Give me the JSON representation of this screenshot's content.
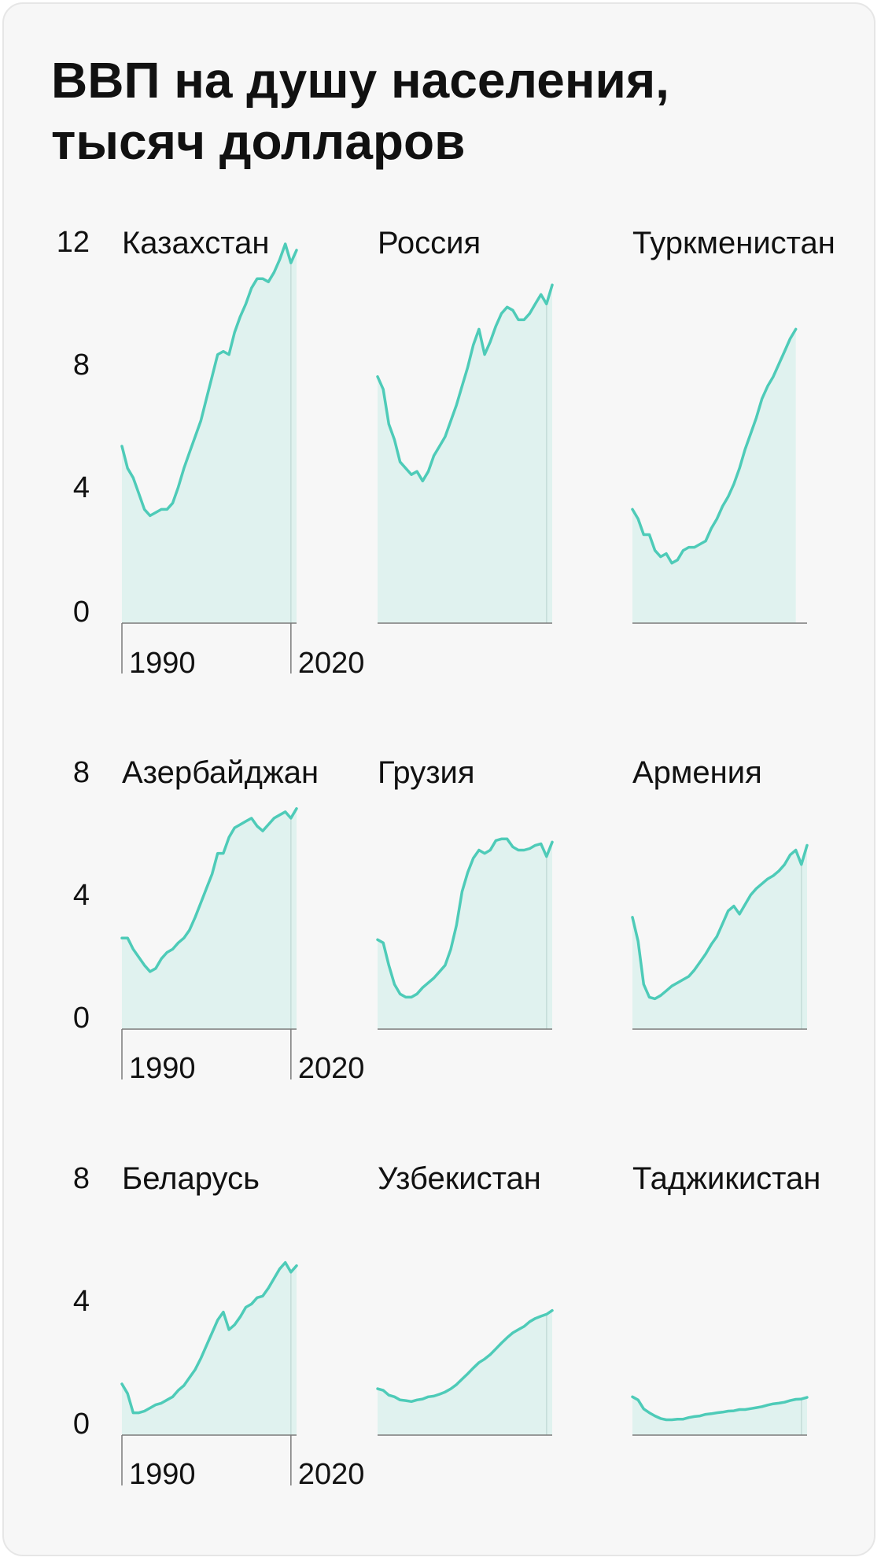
{
  "title_line1": "ВВП на душу населения,",
  "title_line2": "тысяч долларов",
  "colors": {
    "line": "#4ecbb8",
    "fill": "#e0f2ef",
    "axis": "#7a7a7a",
    "text": "#111111"
  },
  "chart_data": [
    {
      "type": "area",
      "title": "Казахстан",
      "ylim": [
        0,
        12
      ],
      "yticks": [
        0,
        4,
        8,
        12
      ],
      "xlim": [
        1990,
        2021
      ],
      "x_tick_labels": [
        "1990",
        "2020"
      ],
      "x": [
        1990,
        1991,
        1992,
        1993,
        1994,
        1995,
        1996,
        1997,
        1998,
        1999,
        2000,
        2001,
        2002,
        2003,
        2004,
        2005,
        2006,
        2007,
        2008,
        2009,
        2010,
        2011,
        2012,
        2013,
        2014,
        2015,
        2016,
        2017,
        2018,
        2019,
        2020,
        2021
      ],
      "values": [
        5.6,
        4.9,
        4.6,
        4.1,
        3.6,
        3.4,
        3.5,
        3.6,
        3.6,
        3.8,
        4.3,
        4.9,
        5.4,
        5.9,
        6.4,
        7.1,
        7.8,
        8.5,
        8.6,
        8.5,
        9.2,
        9.7,
        10.1,
        10.6,
        10.9,
        10.9,
        10.8,
        11.1,
        11.5,
        12.0,
        11.4,
        11.8
      ]
    },
    {
      "type": "area",
      "title": "Россия",
      "ylim": [
        0,
        12
      ],
      "yticks": [
        0,
        4,
        8,
        12
      ],
      "xlim": [
        1990,
        2021
      ],
      "x": [
        1990,
        1991,
        1992,
        1993,
        1994,
        1995,
        1996,
        1997,
        1998,
        1999,
        2000,
        2001,
        2002,
        2003,
        2004,
        2005,
        2006,
        2007,
        2008,
        2009,
        2010,
        2011,
        2012,
        2013,
        2014,
        2015,
        2016,
        2017,
        2018,
        2019,
        2020,
        2021
      ],
      "values": [
        7.8,
        7.4,
        6.3,
        5.8,
        5.1,
        4.9,
        4.7,
        4.8,
        4.5,
        4.8,
        5.3,
        5.6,
        5.9,
        6.4,
        6.9,
        7.5,
        8.1,
        8.8,
        9.3,
        8.5,
        8.9,
        9.4,
        9.8,
        10.0,
        9.9,
        9.6,
        9.6,
        9.8,
        10.1,
        10.4,
        10.1,
        10.7
      ]
    },
    {
      "type": "area",
      "title": "Туркменистан",
      "ylim": [
        0,
        12
      ],
      "yticks": [
        0,
        4,
        8,
        12
      ],
      "xlim": [
        1990,
        2021
      ],
      "x": [
        1990,
        1991,
        1992,
        1993,
        1994,
        1995,
        1996,
        1997,
        1998,
        1999,
        2000,
        2001,
        2002,
        2003,
        2004,
        2005,
        2006,
        2007,
        2008,
        2009,
        2010,
        2011,
        2012,
        2013,
        2014,
        2015,
        2016,
        2017,
        2018,
        2019
      ],
      "values": [
        3.6,
        3.3,
        2.8,
        2.8,
        2.3,
        2.1,
        2.2,
        1.9,
        2.0,
        2.3,
        2.4,
        2.4,
        2.5,
        2.6,
        3.0,
        3.3,
        3.7,
        4.0,
        4.4,
        4.9,
        5.5,
        6.0,
        6.5,
        7.1,
        7.5,
        7.8,
        8.2,
        8.6,
        9.0,
        9.3
      ]
    },
    {
      "type": "area",
      "title": "Азербайджан",
      "ylim": [
        0,
        8
      ],
      "yticks": [
        0,
        4,
        8
      ],
      "xlim": [
        1990,
        2021
      ],
      "x_tick_labels": [
        "1990",
        "2020"
      ],
      "x": [
        1990,
        1991,
        1992,
        1993,
        1994,
        1995,
        1996,
        1997,
        1998,
        1999,
        2000,
        2001,
        2002,
        2003,
        2004,
        2005,
        2006,
        2007,
        2008,
        2009,
        2010,
        2011,
        2012,
        2013,
        2014,
        2015,
        2016,
        2017,
        2018,
        2019,
        2020,
        2021
      ],
      "values": [
        2.85,
        2.85,
        2.5,
        2.25,
        2.0,
        1.8,
        1.9,
        2.2,
        2.4,
        2.5,
        2.7,
        2.85,
        3.1,
        3.5,
        3.95,
        4.4,
        4.85,
        5.5,
        5.5,
        6.0,
        6.3,
        6.4,
        6.5,
        6.6,
        6.35,
        6.2,
        6.4,
        6.6,
        6.7,
        6.8,
        6.6,
        6.9
      ]
    },
    {
      "type": "area",
      "title": "Грузия",
      "ylim": [
        0,
        8
      ],
      "yticks": [
        0,
        4,
        8
      ],
      "xlim": [
        1990,
        2021
      ],
      "x": [
        1990,
        1991,
        1992,
        1993,
        1994,
        1995,
        1996,
        1997,
        1998,
        1999,
        2000,
        2001,
        2002,
        2003,
        2004,
        2005,
        2006,
        2007,
        2008,
        2009,
        2010,
        2011,
        2012,
        2013,
        2014,
        2015,
        2016,
        2017,
        2018,
        2019,
        2020,
        2021
      ],
      "values": [
        2.8,
        2.7,
        2.0,
        1.4,
        1.1,
        1.0,
        1.0,
        1.1,
        1.3,
        1.45,
        1.6,
        1.8,
        2.0,
        2.5,
        3.25,
        4.3,
        4.9,
        5.35,
        5.6,
        5.5,
        5.6,
        5.9,
        5.95,
        5.95,
        5.7,
        5.6,
        5.6,
        5.65,
        5.75,
        5.8,
        5.4,
        5.85
      ]
    },
    {
      "type": "area",
      "title": "Армения",
      "ylim": [
        0,
        8
      ],
      "yticks": [
        0,
        4,
        8
      ],
      "xlim": [
        1990,
        2021
      ],
      "x": [
        1990,
        1991,
        1992,
        1993,
        1994,
        1995,
        1996,
        1997,
        1998,
        1999,
        2000,
        2001,
        2002,
        2003,
        2004,
        2005,
        2006,
        2007,
        2008,
        2009,
        2010,
        2011,
        2012,
        2013,
        2014,
        2015,
        2016,
        2017,
        2018,
        2019,
        2020,
        2021
      ],
      "values": [
        3.5,
        2.75,
        1.4,
        1.0,
        0.95,
        1.05,
        1.2,
        1.35,
        1.45,
        1.55,
        1.65,
        1.85,
        2.1,
        2.35,
        2.65,
        2.9,
        3.3,
        3.7,
        3.85,
        3.6,
        3.9,
        4.2,
        4.4,
        4.55,
        4.7,
        4.8,
        4.95,
        5.15,
        5.45,
        5.6,
        5.15,
        5.75
      ]
    },
    {
      "type": "area",
      "title": "Беларусь",
      "ylim": [
        0,
        8
      ],
      "yticks": [
        0,
        4,
        8
      ],
      "xlim": [
        1990,
        2021
      ],
      "x_tick_labels": [
        "1990",
        "2020"
      ],
      "x": [
        1990,
        1991,
        1992,
        1993,
        1994,
        1995,
        1996,
        1997,
        1998,
        1999,
        2000,
        2001,
        2002,
        2003,
        2004,
        2005,
        2006,
        2007,
        2008,
        2009,
        2010,
        2011,
        2012,
        2013,
        2014,
        2015,
        2016,
        2017,
        2018,
        2019,
        2020,
        2021
      ],
      "values": [
        1.6,
        1.3,
        0.7,
        0.7,
        0.75,
        0.85,
        0.95,
        1.0,
        1.1,
        1.2,
        1.4,
        1.55,
        1.8,
        2.05,
        2.4,
        2.8,
        3.2,
        3.6,
        3.85,
        3.3,
        3.45,
        3.7,
        4.0,
        4.1,
        4.3,
        4.35,
        4.6,
        4.9,
        5.2,
        5.4,
        5.1,
        5.3
      ]
    },
    {
      "type": "area",
      "title": "Узбекистан",
      "ylim": [
        0,
        8
      ],
      "yticks": [
        0,
        4,
        8
      ],
      "xlim": [
        1990,
        2021
      ],
      "x": [
        1990,
        1991,
        1992,
        1993,
        1994,
        1995,
        1996,
        1997,
        1998,
        1999,
        2000,
        2001,
        2002,
        2003,
        2004,
        2005,
        2006,
        2007,
        2008,
        2009,
        2010,
        2011,
        2012,
        2013,
        2014,
        2015,
        2016,
        2017,
        2018,
        2019,
        2020,
        2021
      ],
      "values": [
        1.45,
        1.4,
        1.25,
        1.2,
        1.1,
        1.08,
        1.05,
        1.1,
        1.13,
        1.2,
        1.22,
        1.28,
        1.35,
        1.45,
        1.58,
        1.75,
        1.92,
        2.1,
        2.27,
        2.38,
        2.52,
        2.7,
        2.88,
        3.05,
        3.2,
        3.3,
        3.4,
        3.55,
        3.65,
        3.72,
        3.78,
        3.9
      ]
    },
    {
      "type": "area",
      "title": "Таджикистан",
      "ylim": [
        0,
        8
      ],
      "yticks": [
        0,
        4,
        8
      ],
      "xlim": [
        1990,
        2021
      ],
      "x": [
        1990,
        1991,
        1992,
        1993,
        1994,
        1995,
        1996,
        1997,
        1998,
        1999,
        2000,
        2001,
        2002,
        2003,
        2004,
        2005,
        2006,
        2007,
        2008,
        2009,
        2010,
        2011,
        2012,
        2013,
        2014,
        2015,
        2016,
        2017,
        2018,
        2019,
        2020,
        2021
      ],
      "values": [
        1.2,
        1.1,
        0.82,
        0.7,
        0.6,
        0.52,
        0.48,
        0.48,
        0.5,
        0.5,
        0.55,
        0.58,
        0.6,
        0.65,
        0.67,
        0.7,
        0.72,
        0.75,
        0.76,
        0.8,
        0.8,
        0.83,
        0.86,
        0.89,
        0.94,
        0.98,
        1.0,
        1.03,
        1.08,
        1.12,
        1.13,
        1.18
      ]
    }
  ]
}
